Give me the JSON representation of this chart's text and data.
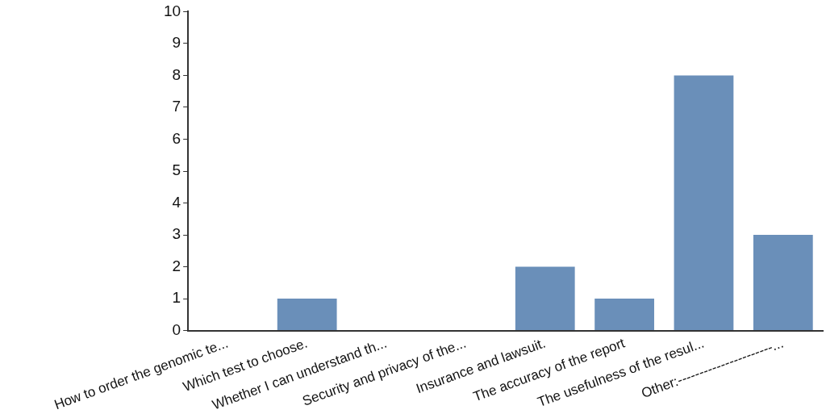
{
  "chart_data": {
    "type": "bar",
    "categories": [
      "How to order the genomic te...",
      "Which test to choose.",
      "Whether I can understand th...",
      "Security and privacy of the...",
      "Insurance and lawsuit.",
      "The accuracy of the report",
      "The usefulness of the resul...",
      "Other:----------------------..."
    ],
    "values": [
      0,
      1,
      0,
      0,
      2,
      1,
      8,
      3
    ],
    "color": "#6a8fb9",
    "ylim": [
      0,
      10
    ],
    "yticks": [
      0,
      1,
      2,
      3,
      4,
      5,
      6,
      7,
      8,
      9,
      10
    ],
    "grid": false,
    "legend": false
  }
}
